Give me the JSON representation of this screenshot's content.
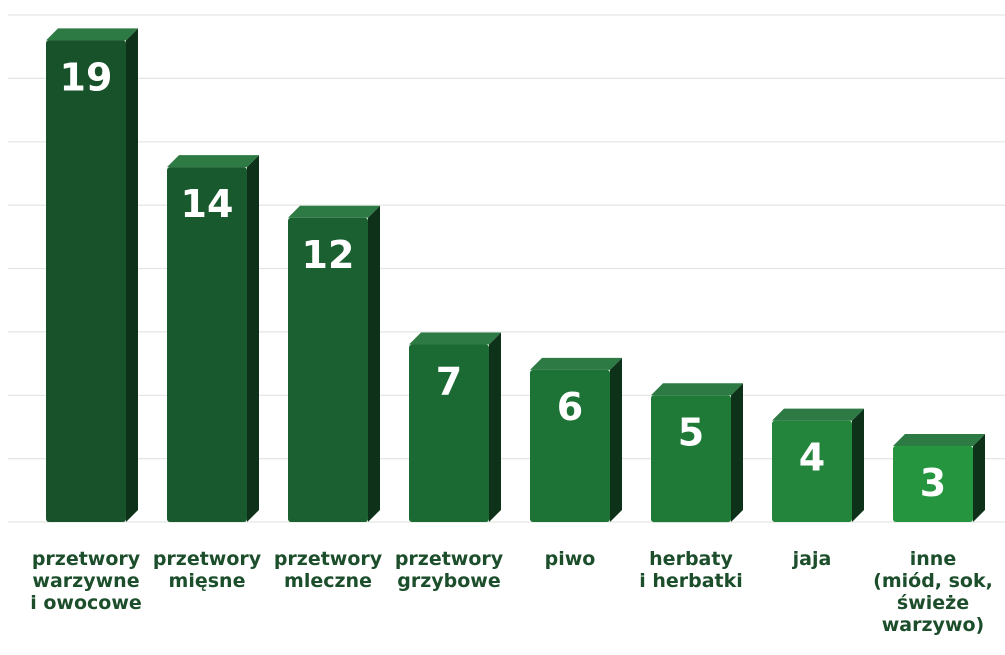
{
  "chart_data": {
    "type": "bar",
    "categories": [
      "przetwory\nwarzywne\ni owocowe",
      "przetwory\nmięsne",
      "przetwory\nmleczne",
      "przetwory\ngrzybowe",
      "piwo",
      "herbaty\ni herbatki",
      "jaja",
      "inne\n(miód, sok,\nświeże\nwarzywo)"
    ],
    "values": [
      19,
      14,
      12,
      7,
      6,
      5,
      4,
      3
    ],
    "ylim": [
      0,
      20
    ],
    "grid": true,
    "legend": "none",
    "colors": {
      "front": [
        "#17522b",
        "#185a2d",
        "#1a6030",
        "#1c6a33",
        "#1d7236",
        "#1f7a38",
        "#22853b",
        "#26953f"
      ],
      "side": "#0d3219",
      "top": "#2d7a44",
      "grid": "#e3e6e3",
      "value_label": "#ffffff"
    }
  }
}
